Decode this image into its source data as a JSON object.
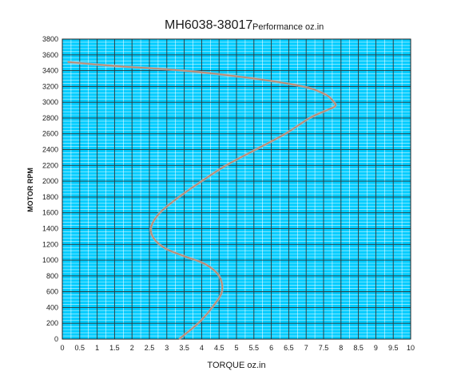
{
  "chart_data": {
    "type": "line",
    "title": "MH6038-38017",
    "subtitle": "Performance oz.in",
    "xlabel": "TORQUE  oz.in",
    "ylabel": "MOTOR RPM",
    "xlim": [
      0,
      10
    ],
    "ylim": [
      0,
      3800
    ],
    "xticks": [
      "0",
      "0.5",
      "1",
      "1.5",
      "2",
      "2.5",
      "3",
      "3.5",
      "4",
      "4.5",
      "5",
      "5.5",
      "6",
      "6.5",
      "7",
      "7.5",
      "8",
      "8.5",
      "9",
      "9.5",
      "10"
    ],
    "yticks": [
      "0",
      "200",
      "400",
      "600",
      "800",
      "1000",
      "1200",
      "1400",
      "1600",
      "1800",
      "2000",
      "2200",
      "2400",
      "2600",
      "2800",
      "3000",
      "3200",
      "3400",
      "3600",
      "3800"
    ],
    "grid": true,
    "background_color": "#00ccff",
    "major_grid_color": "#333333",
    "minor_grid_color": "#ffffff",
    "series": [
      {
        "color": "#c08a6a",
        "x": [
          3.35,
          3.9,
          4.3,
          4.58,
          4.5,
          4.1,
          3.5,
          2.95,
          2.62,
          2.55,
          2.8,
          3.35,
          4.0,
          4.7,
          5.55,
          6.4,
          7.1,
          7.6,
          7.83,
          7.8,
          7.55,
          6.9,
          5.5,
          3.5,
          1.5,
          0.15
        ],
        "y": [
          0,
          200,
          400,
          600,
          800,
          950,
          1050,
          1150,
          1280,
          1420,
          1600,
          1800,
          2000,
          2200,
          2400,
          2600,
          2800,
          2900,
          2950,
          3000,
          3100,
          3200,
          3300,
          3400,
          3460,
          3510
        ]
      }
    ]
  }
}
